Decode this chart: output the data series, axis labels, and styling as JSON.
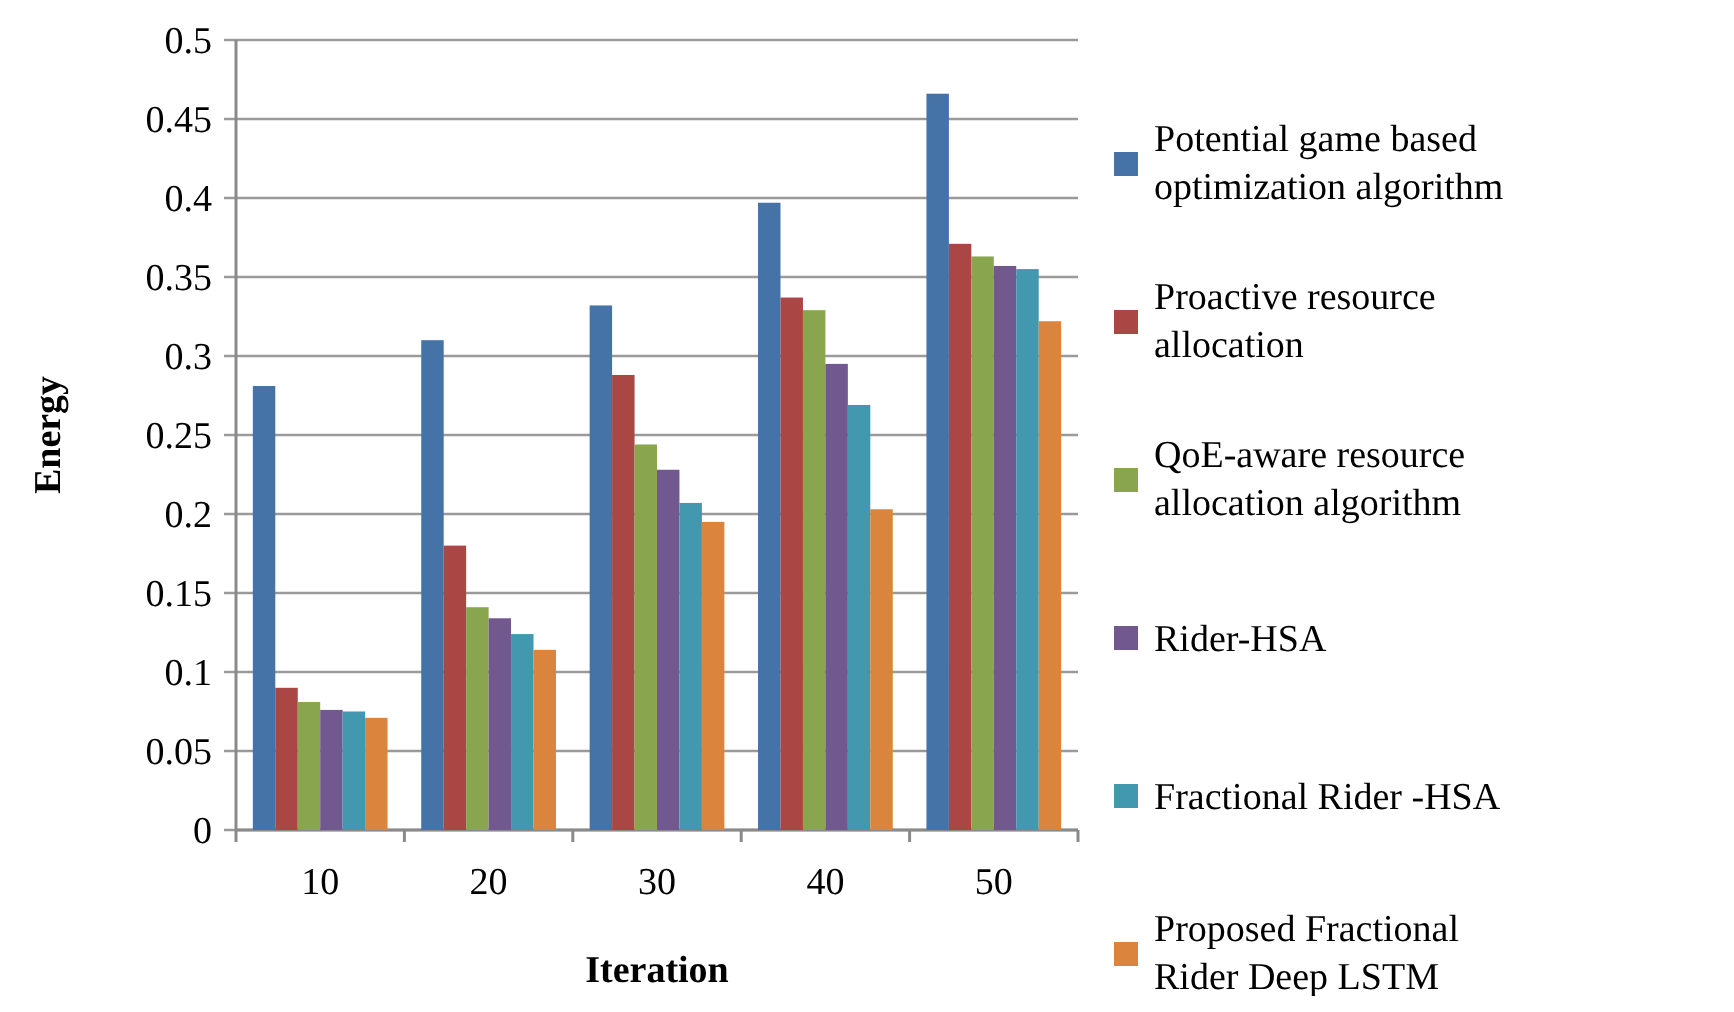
{
  "chart_data": {
    "type": "bar",
    "xlabel": "Iteration",
    "ylabel": "Energy",
    "categories": [
      "10",
      "20",
      "30",
      "40",
      "50"
    ],
    "series": [
      {
        "name": "Potential game based optimization algorithm",
        "color": "#4572a7",
        "values": [
          0.281,
          0.31,
          0.332,
          0.397,
          0.466
        ]
      },
      {
        "name": "Proactive resource allocation",
        "color": "#aa4643",
        "values": [
          0.09,
          0.18,
          0.288,
          0.337,
          0.371
        ]
      },
      {
        "name": "QoE-aware resource allocation algorithm",
        "color": "#89a54e",
        "values": [
          0.081,
          0.141,
          0.244,
          0.329,
          0.363
        ]
      },
      {
        "name": "Rider-HSA",
        "color": "#71588f",
        "values": [
          0.076,
          0.134,
          0.228,
          0.295,
          0.357
        ]
      },
      {
        "name": "Fractional Rider -HSA",
        "color": "#4198af",
        "values": [
          0.075,
          0.124,
          0.207,
          0.269,
          0.355
        ]
      },
      {
        "name": "Proposed Fractional Rider Deep LSTM",
        "color": "#db843d",
        "values": [
          0.071,
          0.114,
          0.195,
          0.203,
          0.322
        ]
      }
    ],
    "ylim": [
      0,
      0.5
    ],
    "yticks": [
      0,
      0.05,
      0.1,
      0.15,
      0.2,
      0.25,
      0.3,
      0.35,
      0.4,
      0.45,
      0.5
    ],
    "grid": "y",
    "legend": "right"
  }
}
